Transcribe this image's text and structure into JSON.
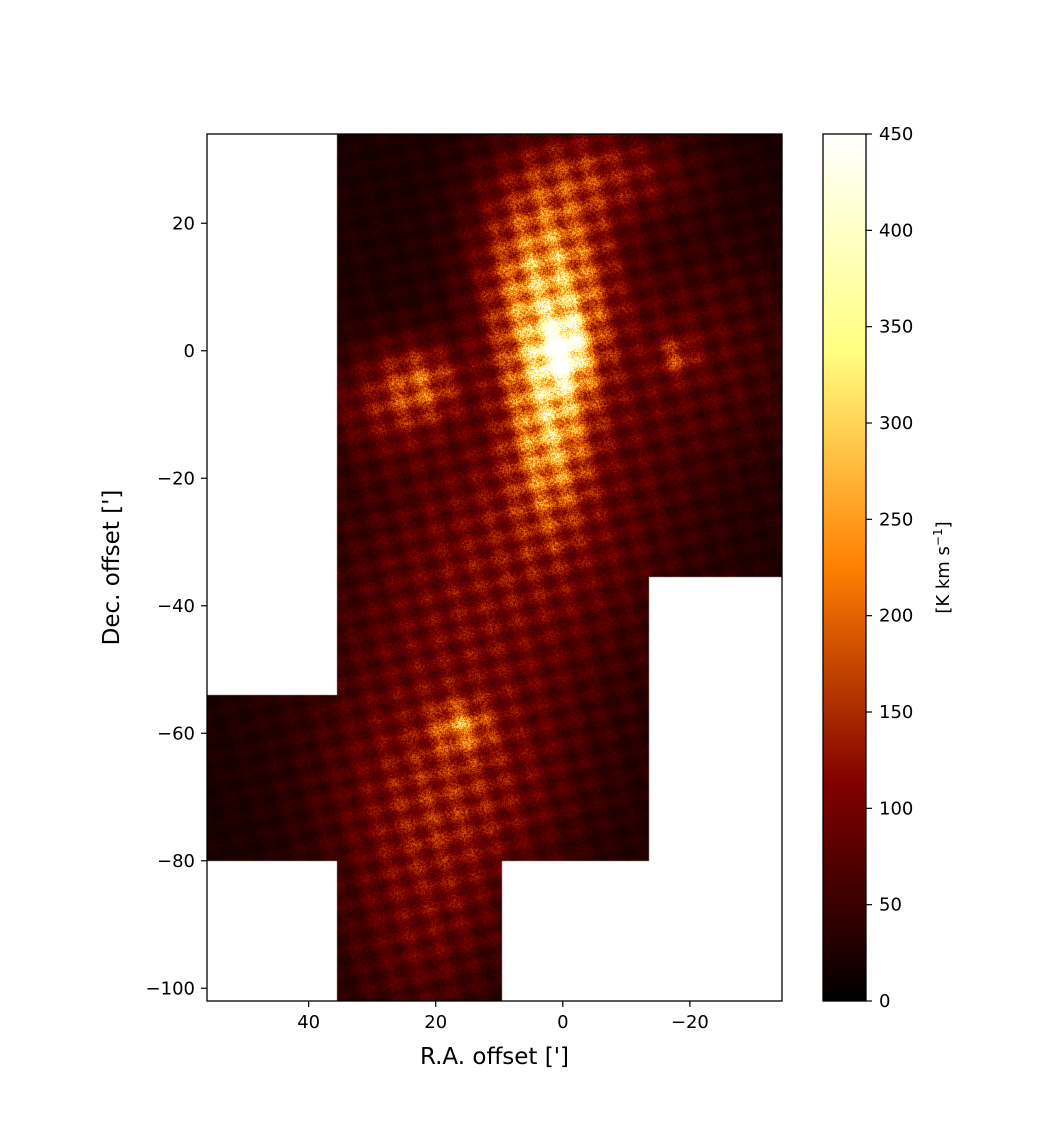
{
  "chart_data": {
    "type": "heatmap",
    "title": "",
    "xlabel": "R.A. offset [']",
    "ylabel": "Dec. offset [']",
    "xlim": [
      56,
      -34.5
    ],
    "ylim": [
      -102,
      34
    ],
    "x_ticks": [
      {
        "value": 40,
        "label": "40"
      },
      {
        "value": 20,
        "label": "20"
      },
      {
        "value": 0,
        "label": "0"
      },
      {
        "value": -20,
        "label": "−20"
      }
    ],
    "y_ticks": [
      {
        "value": 20,
        "label": "20"
      },
      {
        "value": 0,
        "label": "0"
      },
      {
        "value": -20,
        "label": "−20"
      },
      {
        "value": -40,
        "label": "−40"
      },
      {
        "value": -60,
        "label": "−60"
      },
      {
        "value": -80,
        "label": "−80"
      },
      {
        "value": -100,
        "label": "−100"
      }
    ],
    "colormap": "afmhot",
    "colorbar": {
      "label_main": "[K km s",
      "label_sup": "−1",
      "label_end": "]",
      "vmin": 0,
      "vmax": 450,
      "ticks": [
        {
          "value": 0,
          "label": "0"
        },
        {
          "value": 50,
          "label": "50"
        },
        {
          "value": 100,
          "label": "100"
        },
        {
          "value": 150,
          "label": "150"
        },
        {
          "value": 200,
          "label": "200"
        },
        {
          "value": 250,
          "label": "250"
        },
        {
          "value": 300,
          "label": "300"
        },
        {
          "value": 350,
          "label": "350"
        },
        {
          "value": 400,
          "label": "400"
        },
        {
          "value": 450,
          "label": "450"
        }
      ]
    },
    "coverage_regions": [
      {
        "x": [
          35.5,
          -34.5
        ],
        "y": [
          -35.5,
          34
        ]
      },
      {
        "x": [
          35.5,
          -13.5
        ],
        "y": [
          -80,
          -35.5
        ]
      },
      {
        "x": [
          56,
          35.5
        ],
        "y": [
          -80,
          -54
        ]
      },
      {
        "x": [
          35.5,
          9.5
        ],
        "y": [
          -102,
          -80
        ]
      }
    ],
    "emission_features": [
      {
        "name": "central-peak",
        "x": 0,
        "y": 0,
        "peak": 440,
        "sx": 2.2,
        "sy": 3.2
      },
      {
        "name": "central-ridge",
        "x": 2,
        "y": 3,
        "peak": 230,
        "sx": 6,
        "sy": 10
      },
      {
        "name": "northern-filament",
        "x": 3,
        "y": 16,
        "peak": 170,
        "sx": 7,
        "sy": 9
      },
      {
        "name": "ne-arc",
        "x": -6,
        "y": 28,
        "peak": 110,
        "sx": 10,
        "sy": 5
      },
      {
        "name": "southern-ridge",
        "x": 2,
        "y": -12,
        "peak": 200,
        "sx": 4,
        "sy": 10
      },
      {
        "name": "east-clump",
        "x": 22,
        "y": -5,
        "peak": 140,
        "sx": 4,
        "sy": 4
      },
      {
        "name": "east-extension",
        "x": 28,
        "y": -8,
        "peak": 90,
        "sx": 6,
        "sy": 6
      },
      {
        "name": "west-clump",
        "x": -18,
        "y": -1,
        "peak": 110,
        "sx": 2,
        "sy": 2
      },
      {
        "name": "west-diffuse",
        "x": -20,
        "y": 0,
        "peak": 60,
        "sx": 12,
        "sy": 12
      },
      {
        "name": "central-diffuse",
        "x": 3,
        "y": -25,
        "peak": 80,
        "sx": 14,
        "sy": 15
      },
      {
        "name": "mid-diffuse",
        "x": 17,
        "y": -50,
        "peak": 70,
        "sx": 14,
        "sy": 18
      },
      {
        "name": "south-clump",
        "x": 16,
        "y": -59,
        "peak": 150,
        "sx": 3,
        "sy": 2.5
      },
      {
        "name": "south-diffuse",
        "x": 18,
        "y": -70,
        "peak": 85,
        "sx": 12,
        "sy": 10
      },
      {
        "name": "tail",
        "x": 22,
        "y": -90,
        "peak": 75,
        "sx": 9,
        "sy": 12
      },
      {
        "name": "background",
        "x": 10,
        "y": -30,
        "peak": 35,
        "sx": 60,
        "sy": 80
      }
    ]
  }
}
